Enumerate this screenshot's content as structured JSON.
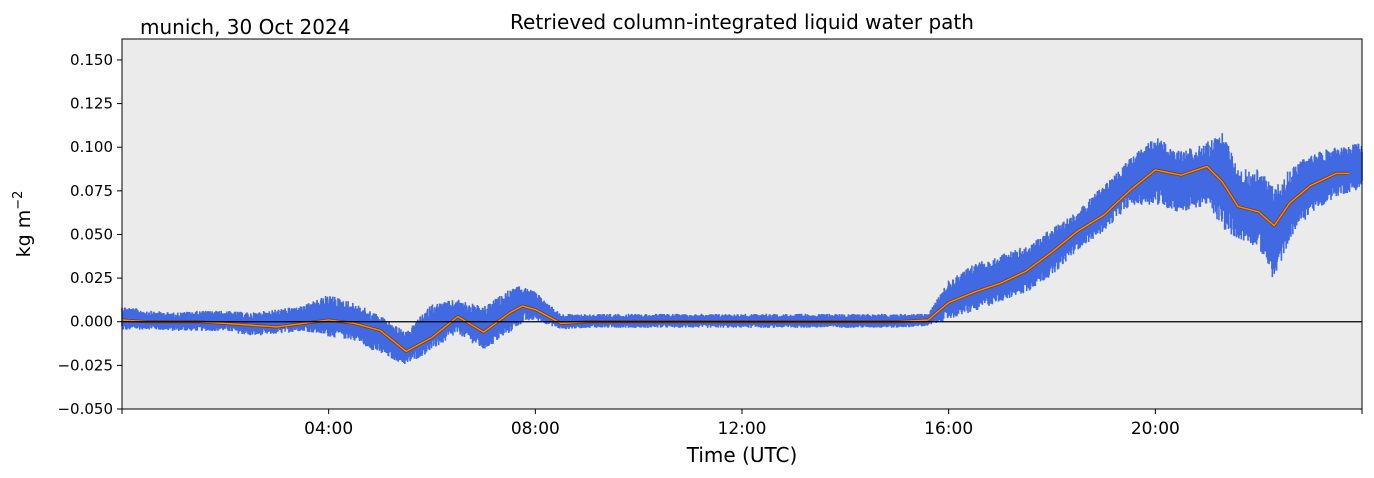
{
  "chart_data": {
    "type": "scatter",
    "title": "Retrieved column-integrated liquid water path",
    "subtitle": "munich, 30 Oct 2024",
    "xlabel": "Time (UTC)",
    "ylabel": "kg m",
    "ylabel_superscript": "−2",
    "xlim": [
      0,
      24
    ],
    "ylim": [
      -0.05,
      0.162
    ],
    "x_ticks": [
      {
        "value": 4,
        "label": "04:00"
      },
      {
        "value": 8,
        "label": "08:00"
      },
      {
        "value": 12,
        "label": "12:00"
      },
      {
        "value": 16,
        "label": "16:00"
      },
      {
        "value": 20,
        "label": "20:00"
      }
    ],
    "y_ticks": [
      {
        "value": 0.15,
        "label": "0.150"
      },
      {
        "value": 0.125,
        "label": "0.125"
      },
      {
        "value": 0.1,
        "label": "0.100"
      },
      {
        "value": 0.075,
        "label": "0.075"
      },
      {
        "value": 0.05,
        "label": "0.050"
      },
      {
        "value": 0.025,
        "label": "0.025"
      },
      {
        "value": 0.0,
        "label": "0.000"
      },
      {
        "value": -0.025,
        "label": "−0.025"
      },
      {
        "value": -0.05,
        "label": "−0.050"
      }
    ],
    "reference_line_y": 0,
    "background": "#ebebeb",
    "series": [
      {
        "kind": "scatter-band",
        "color": "#4169e1",
        "x": [
          0.0,
          0.5,
          1.0,
          1.5,
          2.0,
          2.5,
          3.0,
          3.5,
          4.0,
          4.5,
          5.0,
          5.5,
          6.0,
          6.5,
          7.0,
          7.5,
          7.75,
          8.0,
          8.5,
          9.0,
          10.0,
          11.0,
          12.0,
          13.0,
          14.0,
          15.0,
          15.6,
          16.0,
          16.5,
          17.0,
          17.5,
          18.0,
          18.5,
          19.0,
          19.5,
          20.0,
          20.5,
          21.0,
          21.3,
          21.6,
          22.0,
          22.3,
          22.6,
          23.0,
          23.5,
          24.0
        ],
        "y_low": [
          -0.006,
          -0.005,
          -0.006,
          -0.006,
          -0.006,
          -0.009,
          -0.008,
          -0.006,
          -0.01,
          -0.012,
          -0.02,
          -0.026,
          -0.018,
          -0.008,
          -0.018,
          -0.008,
          -0.002,
          0.0,
          -0.005,
          -0.004,
          -0.004,
          -0.004,
          -0.004,
          -0.004,
          -0.004,
          -0.004,
          -0.003,
          0.0,
          0.004,
          0.01,
          0.015,
          0.025,
          0.04,
          0.05,
          0.065,
          0.065,
          0.06,
          0.065,
          0.05,
          0.045,
          0.04,
          0.02,
          0.045,
          0.06,
          0.07,
          0.075
        ],
        "y_high": [
          0.01,
          0.007,
          0.006,
          0.007,
          0.007,
          0.006,
          0.008,
          0.01,
          0.017,
          0.012,
          0.005,
          -0.005,
          0.012,
          0.014,
          0.01,
          0.02,
          0.022,
          0.018,
          0.005,
          0.005,
          0.005,
          0.005,
          0.005,
          0.005,
          0.005,
          0.005,
          0.005,
          0.025,
          0.035,
          0.04,
          0.045,
          0.055,
          0.065,
          0.08,
          0.095,
          0.108,
          0.1,
          0.105,
          0.112,
          0.09,
          0.09,
          0.08,
          0.09,
          0.098,
          0.102,
          0.104
        ]
      },
      {
        "kind": "running-mean",
        "color": "#ff8c00",
        "x": [
          0.0,
          0.5,
          1.0,
          1.5,
          2.0,
          2.5,
          3.0,
          3.5,
          4.0,
          4.5,
          5.0,
          5.5,
          6.0,
          6.5,
          7.0,
          7.5,
          7.75,
          8.0,
          8.5,
          9.0,
          10.0,
          11.0,
          12.0,
          13.0,
          14.0,
          15.0,
          15.6,
          16.0,
          16.5,
          17.0,
          17.5,
          18.0,
          18.5,
          19.0,
          19.5,
          20.0,
          20.5,
          21.0,
          21.3,
          21.6,
          22.0,
          22.3,
          22.6,
          23.0,
          23.5,
          23.75
        ],
        "y": [
          0.001,
          0.0,
          0.0,
          0.0,
          -0.001,
          -0.002,
          -0.003,
          -0.001,
          0.001,
          -0.001,
          -0.005,
          -0.017,
          -0.009,
          0.003,
          -0.006,
          0.005,
          0.009,
          0.007,
          -0.001,
          0.0,
          0.0,
          0.0,
          0.0,
          0.0,
          0.0,
          0.0,
          0.001,
          0.011,
          0.017,
          0.022,
          0.029,
          0.04,
          0.052,
          0.061,
          0.075,
          0.087,
          0.084,
          0.089,
          0.08,
          0.066,
          0.063,
          0.055,
          0.068,
          0.078,
          0.085,
          0.085
        ]
      }
    ]
  }
}
